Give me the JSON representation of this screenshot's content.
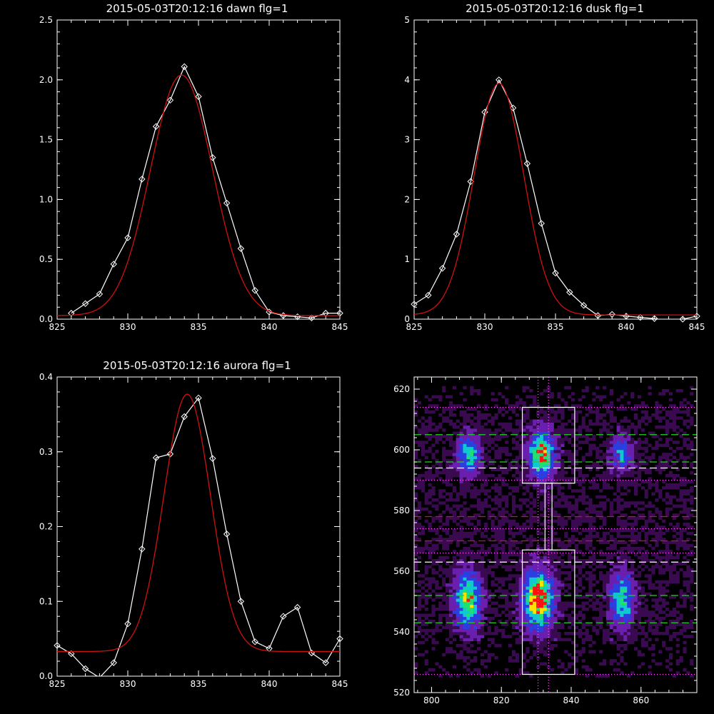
{
  "chart_data": [
    {
      "id": "dawn",
      "type": "line",
      "title": "2015-05-03T20:12:16 dawn flg=1",
      "xlim": [
        825,
        845
      ],
      "ylim": [
        0,
        2.5
      ],
      "xticks": [
        825,
        830,
        835,
        840,
        845
      ],
      "xtick_labels": [
        "825",
        "830",
        "835",
        "840",
        "845"
      ],
      "yticks": [
        0,
        0.5,
        1.0,
        1.5,
        2.0,
        2.5
      ],
      "ytick_labels": [
        "0.0",
        "0.5",
        "1.0",
        "1.5",
        "2.0",
        "2.5"
      ],
      "series": [
        {
          "color": "#ffffff",
          "marker": "diamond",
          "x": [
            826,
            827,
            828,
            829,
            830,
            831,
            832,
            833,
            834,
            835,
            836,
            837,
            838,
            839,
            840,
            841,
            842,
            843,
            844,
            845
          ],
          "y": [
            0.05,
            0.13,
            0.21,
            0.46,
            0.68,
            1.17,
            1.61,
            1.83,
            2.11,
            1.86,
            1.35,
            0.97,
            0.59,
            0.24,
            0.06,
            0.03,
            0.02,
            0.01,
            0.05,
            0.05
          ]
        },
        {
          "color": "#d01010",
          "fit": "gaussian",
          "center": 833.8,
          "sigma": 2.2,
          "amplitude": 2.01,
          "baseline": 0.03
        }
      ]
    },
    {
      "id": "dusk",
      "type": "line",
      "title": "2015-05-03T20:12:16 dusk flg=1",
      "xlim": [
        825,
        845
      ],
      "ylim": [
        0,
        5
      ],
      "xticks": [
        825,
        830,
        835,
        840,
        845
      ],
      "xtick_labels": [
        "825",
        "830",
        "835",
        "840",
        "845"
      ],
      "yticks": [
        0,
        1,
        2,
        3,
        4,
        5
      ],
      "ytick_labels": [
        "0",
        "1",
        "2",
        "3",
        "4",
        "5"
      ],
      "series": [
        {
          "color": "#ffffff",
          "marker": "diamond",
          "x": [
            825,
            826,
            827,
            828,
            829,
            830,
            831,
            832,
            833,
            834,
            835,
            836,
            837,
            838,
            839,
            840,
            841,
            842,
            843,
            844,
            845
          ],
          "y": [
            0.25,
            0.4,
            0.85,
            1.42,
            2.3,
            3.46,
            4.0,
            3.53,
            2.6,
            1.6,
            0.77,
            0.45,
            0.23,
            0.06,
            0.08,
            0.05,
            0.03,
            0.01,
            -0.03,
            0.0,
            0.05
          ]
        },
        {
          "color": "#d01010",
          "fit": "gaussian",
          "center": 831.0,
          "sigma": 1.75,
          "amplitude": 3.87,
          "baseline": 0.07
        }
      ]
    },
    {
      "id": "aurora",
      "type": "line",
      "title": "2015-05-03T20:12:16 aurora flg=1",
      "xlim": [
        825,
        845
      ],
      "ylim": [
        0,
        0.4
      ],
      "xticks": [
        825,
        830,
        835,
        840,
        845
      ],
      "xtick_labels": [
        "825",
        "830",
        "835",
        "840",
        "845"
      ],
      "yticks": [
        0,
        0.1,
        0.2,
        0.3,
        0.4
      ],
      "ytick_labels": [
        "0.0",
        "0.1",
        "0.2",
        "0.3",
        "0.4"
      ],
      "series": [
        {
          "color": "#ffffff",
          "marker": "diamond",
          "x": [
            825,
            826,
            827,
            828,
            829,
            830,
            831,
            832,
            833,
            834,
            835,
            836,
            837,
            838,
            839,
            840,
            841,
            842,
            843,
            844,
            845
          ],
          "y": [
            0.041,
            0.03,
            0.01,
            -0.002,
            0.018,
            0.07,
            0.17,
            0.292,
            0.297,
            0.347,
            0.372,
            0.291,
            0.19,
            0.1,
            0.046,
            0.037,
            0.08,
            0.092,
            0.031,
            0.018,
            0.05
          ]
        },
        {
          "color": "#d01010",
          "fit": "gaussian",
          "center": 834.2,
          "sigma": 1.65,
          "amplitude": 0.344,
          "baseline": 0.033
        }
      ]
    },
    {
      "id": "image",
      "type": "heatmap",
      "xlim": [
        795,
        876
      ],
      "ylim": [
        520,
        624
      ],
      "xticks": [
        800,
        820,
        840,
        860
      ],
      "xtick_labels": [
        "800",
        "820",
        "840",
        "860"
      ],
      "yticks": [
        520,
        540,
        560,
        580,
        600,
        620
      ],
      "ytick_labels": [
        "520",
        "540",
        "560",
        "580",
        "600",
        "620"
      ],
      "colors": {
        "background": "#000000",
        "faint": "#3a0a50",
        "low": "#6a1fae",
        "mid": "#2b3fe0",
        "high": "#10c8d0",
        "higher": "#20e070",
        "peak": "#ffe000",
        "max": "#ff1010"
      },
      "blobs": [
        {
          "x": 810,
          "y": 598,
          "sx": 2.2,
          "sy": 4.5,
          "amp": 0.55
        },
        {
          "x": 831,
          "y": 598,
          "sx": 2.5,
          "sy": 5.0,
          "amp": 0.85
        },
        {
          "x": 854,
          "y": 598,
          "sx": 2.0,
          "sy": 4.0,
          "amp": 0.45
        },
        {
          "x": 810,
          "y": 550,
          "sx": 2.5,
          "sy": 6.0,
          "amp": 0.75
        },
        {
          "x": 830,
          "y": 550,
          "sx": 2.8,
          "sy": 6.5,
          "amp": 1.0
        },
        {
          "x": 854,
          "y": 550,
          "sx": 2.3,
          "sy": 6.0,
          "amp": 0.6
        }
      ],
      "boxes": [
        {
          "x0": 826,
          "x1": 841,
          "y0": 589,
          "y1": 614
        },
        {
          "x0": 826,
          "x1": 841,
          "y0": 526,
          "y1": 567
        },
        {
          "x0": 832.5,
          "x1": 834.5,
          "y0": 567,
          "y1": 589
        }
      ],
      "hlines": [
        {
          "y": 614,
          "color": "#ff60ff",
          "style": "dotted"
        },
        {
          "y": 605,
          "color": "#20d020",
          "style": "dashed"
        },
        {
          "y": 596,
          "color": "#20d020",
          "style": "dashed"
        },
        {
          "y": 594,
          "color": "#ffffff",
          "style": "dashed"
        },
        {
          "y": 590,
          "color": "#ff60ff",
          "style": "dotted"
        },
        {
          "y": 578,
          "color": "#d01030",
          "style": "dashed"
        },
        {
          "y": 574,
          "color": "#ff60ff",
          "style": "dotted"
        },
        {
          "y": 570,
          "color": "#d01030",
          "style": "dashed"
        },
        {
          "y": 566,
          "color": "#ff60ff",
          "style": "dotted"
        },
        {
          "y": 563,
          "color": "#ffffff",
          "style": "dashed"
        },
        {
          "y": 552,
          "color": "#20d020",
          "style": "dashed"
        },
        {
          "y": 543,
          "color": "#20d020",
          "style": "dashed"
        },
        {
          "y": 526,
          "color": "#ff60ff",
          "style": "dotted"
        }
      ],
      "vlines": [
        {
          "x": 830.5,
          "color": "#ff60ff",
          "style": "dotted"
        },
        {
          "x": 833.5,
          "color": "#ff60ff",
          "style": "dotted"
        }
      ]
    }
  ]
}
